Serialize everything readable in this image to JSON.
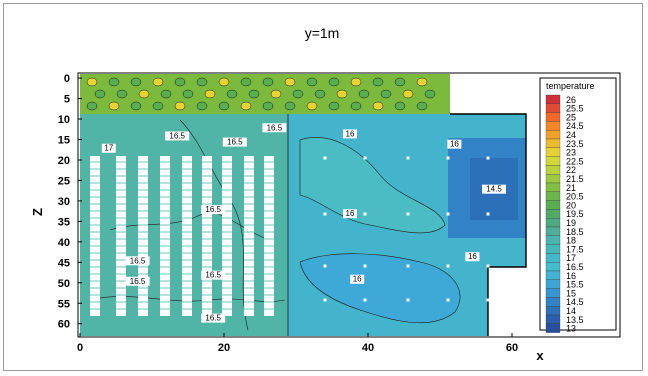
{
  "chart_data": {
    "type": "heatmap",
    "title": "y=1m",
    "xlabel": "x",
    "ylabel": "Z",
    "xlim": [
      0,
      75
    ],
    "ylim": [
      63,
      -1
    ],
    "x_ticks": [
      0,
      20,
      40,
      60
    ],
    "y_ticks": [
      0,
      5,
      10,
      15,
      20,
      25,
      30,
      35,
      40,
      45,
      50,
      55,
      60
    ],
    "legend_title": "temperature",
    "legend_placement": "right",
    "legend_levels": [
      26,
      25.5,
      25,
      24.5,
      24,
      23.5,
      23,
      22.5,
      22,
      21.5,
      21,
      20.5,
      20,
      19.5,
      19,
      18.5,
      18,
      17.5,
      17,
      16.5,
      16,
      15.5,
      15,
      14.5,
      14,
      13.5,
      13
    ],
    "legend_colors": [
      "#d0303a",
      "#e04a30",
      "#f0682a",
      "#f5862a",
      "#f2a22c",
      "#ecbc2e",
      "#e6d232",
      "#d2d83a",
      "#b9d23e",
      "#9ccb40",
      "#82c044",
      "#6ab64a",
      "#5aae52",
      "#52aa66",
      "#4eaa80",
      "#4eae9a",
      "#4ab4ae",
      "#46b8bc",
      "#44b8c8",
      "#44bcd0",
      "#44b2d6",
      "#3ea4d6",
      "#3894d0",
      "#3282c6",
      "#2e70ba",
      "#2a5eac",
      "#26509e"
    ],
    "contour_labels": [
      {
        "x": 13.5,
        "z": 14.5,
        "text": "16.5"
      },
      {
        "x": 21.5,
        "z": 16.0,
        "text": "16.5"
      },
      {
        "x": 27.0,
        "z": 12.5,
        "text": "16.5"
      },
      {
        "x": 37.5,
        "z": 14.0,
        "text": "16"
      },
      {
        "x": 52.0,
        "z": 16.5,
        "text": "16"
      },
      {
        "x": 4.0,
        "z": 17.5,
        "text": "17"
      },
      {
        "x": 18.5,
        "z": 32.5,
        "text": "16.5"
      },
      {
        "x": 37.5,
        "z": 33.5,
        "text": "16"
      },
      {
        "x": 57.5,
        "z": 27.5,
        "text": "14.5"
      },
      {
        "x": 8.0,
        "z": 45.0,
        "text": "16.5"
      },
      {
        "x": 8.0,
        "z": 50.0,
        "text": "16.5"
      },
      {
        "x": 18.5,
        "z": 48.5,
        "text": "16.5"
      },
      {
        "x": 18.5,
        "z": 59.0,
        "text": "16.5"
      },
      {
        "x": 54.5,
        "z": 44.0,
        "text": "16"
      },
      {
        "x": 38.5,
        "z": 49.5,
        "text": "16"
      }
    ]
  }
}
